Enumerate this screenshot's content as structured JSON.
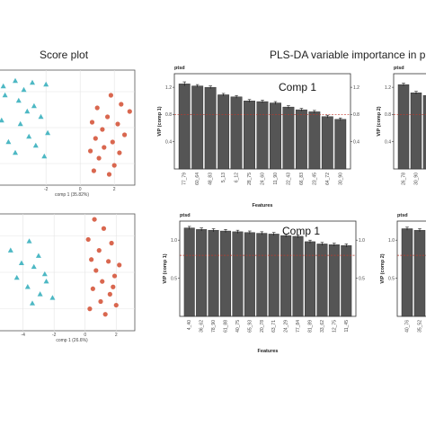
{
  "headings": {
    "score_plot": "Score plot",
    "vip_title": "PLS-DA variable importance in proj"
  },
  "colors": {
    "group_a": "#4db8c4",
    "group_b": "#d9674f",
    "bar": "#555555",
    "threshold": "#c0392b"
  },
  "chart_data": [
    {
      "id": "score-top",
      "type": "scatter",
      "xlabel": "comp 1 (35.82%)",
      "xticks": [
        -2,
        0,
        2
      ],
      "xlim": [
        -4.8,
        3.2
      ],
      "ylim": [
        -3.2,
        3.2
      ],
      "grid": true,
      "series": [
        {
          "marker": "triangle",
          "points": [
            [
              -3.8,
              2.6
            ],
            [
              -2.8,
              2.5
            ],
            [
              -3.3,
              2.1
            ],
            [
              -2.0,
              2.4
            ],
            [
              -4.4,
              1.8
            ],
            [
              -3.6,
              1.5
            ],
            [
              -2.7,
              1.2
            ],
            [
              -3.1,
              0.9
            ],
            [
              -4.6,
              0.4
            ],
            [
              -2.3,
              0.6
            ],
            [
              -3.5,
              0.2
            ],
            [
              -1.9,
              -0.3
            ],
            [
              -3.0,
              -0.5
            ],
            [
              -4.2,
              -0.8
            ],
            [
              -2.6,
              -1.0
            ],
            [
              -3.8,
              -1.4
            ],
            [
              -2.1,
              -1.6
            ],
            [
              -4.5,
              2.3
            ]
          ]
        },
        {
          "marker": "circle",
          "points": [
            [
              1.8,
              1.8
            ],
            [
              2.4,
              1.3
            ],
            [
              1.0,
              1.1
            ],
            [
              2.9,
              0.9
            ],
            [
              1.6,
              0.6
            ],
            [
              0.7,
              0.3
            ],
            [
              2.2,
              0.2
            ],
            [
              1.3,
              -0.1
            ],
            [
              2.6,
              -0.4
            ],
            [
              0.9,
              -0.6
            ],
            [
              1.9,
              -0.8
            ],
            [
              1.4,
              -1.1
            ],
            [
              0.6,
              -1.3
            ],
            [
              2.3,
              -1.4
            ],
            [
              1.1,
              -1.7
            ],
            [
              2.0,
              -2.1
            ],
            [
              0.8,
              -2.4
            ],
            [
              1.7,
              -2.6
            ]
          ]
        }
      ]
    },
    {
      "id": "score-bottom",
      "type": "scatter",
      "xlabel": "comp 1 (26.6%)",
      "xticks": [
        -4,
        -2,
        0,
        2
      ],
      "xlim": [
        -5.6,
        3.2
      ],
      "ylim": [
        -3.2,
        3.2
      ],
      "grid": true,
      "series": [
        {
          "marker": "triangle",
          "points": [
            [
              -4.8,
              1.2
            ],
            [
              -3.6,
              1.7
            ],
            [
              -3.0,
              0.9
            ],
            [
              -4.1,
              0.5
            ],
            [
              -3.3,
              0.3
            ],
            [
              -4.4,
              -0.3
            ],
            [
              -2.5,
              -0.5
            ],
            [
              -3.7,
              -0.8
            ],
            [
              -2.9,
              -1.2
            ],
            [
              -2.1,
              -1.4
            ],
            [
              -3.4,
              -1.7
            ],
            [
              -2.6,
              -0.1
            ]
          ]
        },
        {
          "marker": "circle",
          "points": [
            [
              0.6,
              2.9
            ],
            [
              1.2,
              2.4
            ],
            [
              0.2,
              1.8
            ],
            [
              1.7,
              1.6
            ],
            [
              0.9,
              1.2
            ],
            [
              0.4,
              0.7
            ],
            [
              1.5,
              0.6
            ],
            [
              2.2,
              0.4
            ],
            [
              0.7,
              0.1
            ],
            [
              1.9,
              -0.2
            ],
            [
              1.1,
              -0.5
            ],
            [
              0.5,
              -0.9
            ],
            [
              1.6,
              -1.2
            ],
            [
              1.0,
              -1.6
            ],
            [
              2.0,
              -1.8
            ],
            [
              0.3,
              -2.0
            ],
            [
              1.3,
              -2.3
            ],
            [
              1.8,
              -0.8
            ]
          ]
        }
      ]
    },
    {
      "id": "vip-comp1-top",
      "type": "bar",
      "tag": "ptsd",
      "label": "Comp 1",
      "ylabel": "VIP (comp 1)",
      "xlabel": "Features",
      "ylim": [
        0,
        1.4
      ],
      "yticks": [
        0.4,
        0.8,
        1.2
      ],
      "threshold": 0.8,
      "categories": [
        "77_79",
        "60_64",
        "48_83",
        "5_13",
        "6_12",
        "28_75",
        "24_60",
        "11_90",
        "22_43",
        "66_83",
        "23_45",
        "64_72",
        "30_90"
      ],
      "values": [
        1.25,
        1.22,
        1.2,
        1.09,
        1.06,
        1.0,
        0.99,
        0.97,
        0.91,
        0.87,
        0.84,
        0.77,
        0.73
      ],
      "errors": [
        0.03,
        0.02,
        0.02,
        0.02,
        0.02,
        0.02,
        0.02,
        0.02,
        0.02,
        0.02,
        0.02,
        0.02,
        0.02
      ]
    },
    {
      "id": "vip-comp1-bottom",
      "type": "bar",
      "tag": "ptsd",
      "label": "Comp 1",
      "ylabel": "VIP (comp 1)",
      "xlabel": "Features",
      "ylim": [
        0,
        1.25
      ],
      "yticks": [
        0.5,
        1.0
      ],
      "threshold": 0.8,
      "categories": [
        "4_40",
        "36_62",
        "78_90",
        "61_88",
        "40_75",
        "65_93",
        "20_78",
        "63_71",
        "24_29",
        "77_84",
        "81_89",
        "33_62",
        "12_75",
        "11_45"
      ],
      "values": [
        1.16,
        1.14,
        1.13,
        1.12,
        1.11,
        1.1,
        1.09,
        1.08,
        1.06,
        1.05,
        0.98,
        0.95,
        0.94,
        0.93
      ],
      "errors": [
        0.02,
        0.02,
        0.02,
        0.02,
        0.02,
        0.02,
        0.02,
        0.02,
        0.02,
        0.02,
        0.02,
        0.02,
        0.02,
        0.02
      ]
    },
    {
      "id": "vip-comp2-top",
      "type": "bar",
      "tag": "ptsd",
      "ylabel": "VIP (comp 2)",
      "ylim": [
        0,
        1.4
      ],
      "yticks": [
        0.4,
        0.8,
        1.2
      ],
      "threshold": 0.8,
      "categories": [
        "26_78",
        "30_90",
        "57_64"
      ],
      "values": [
        1.24,
        1.12,
        1.08
      ],
      "errors": [
        0.02,
        0.02,
        0.02
      ]
    },
    {
      "id": "vip-comp2-bottom",
      "type": "bar",
      "tag": "ptsd",
      "ylabel": "VIP (comp 2)",
      "ylim": [
        0,
        1.25
      ],
      "yticks": [
        0.5,
        1.0
      ],
      "threshold": 0.8,
      "categories": [
        "40_76",
        "35_52",
        "60_68"
      ],
      "values": [
        1.15,
        1.13,
        1.12
      ],
      "errors": [
        0.02,
        0.02,
        0.02
      ]
    }
  ]
}
